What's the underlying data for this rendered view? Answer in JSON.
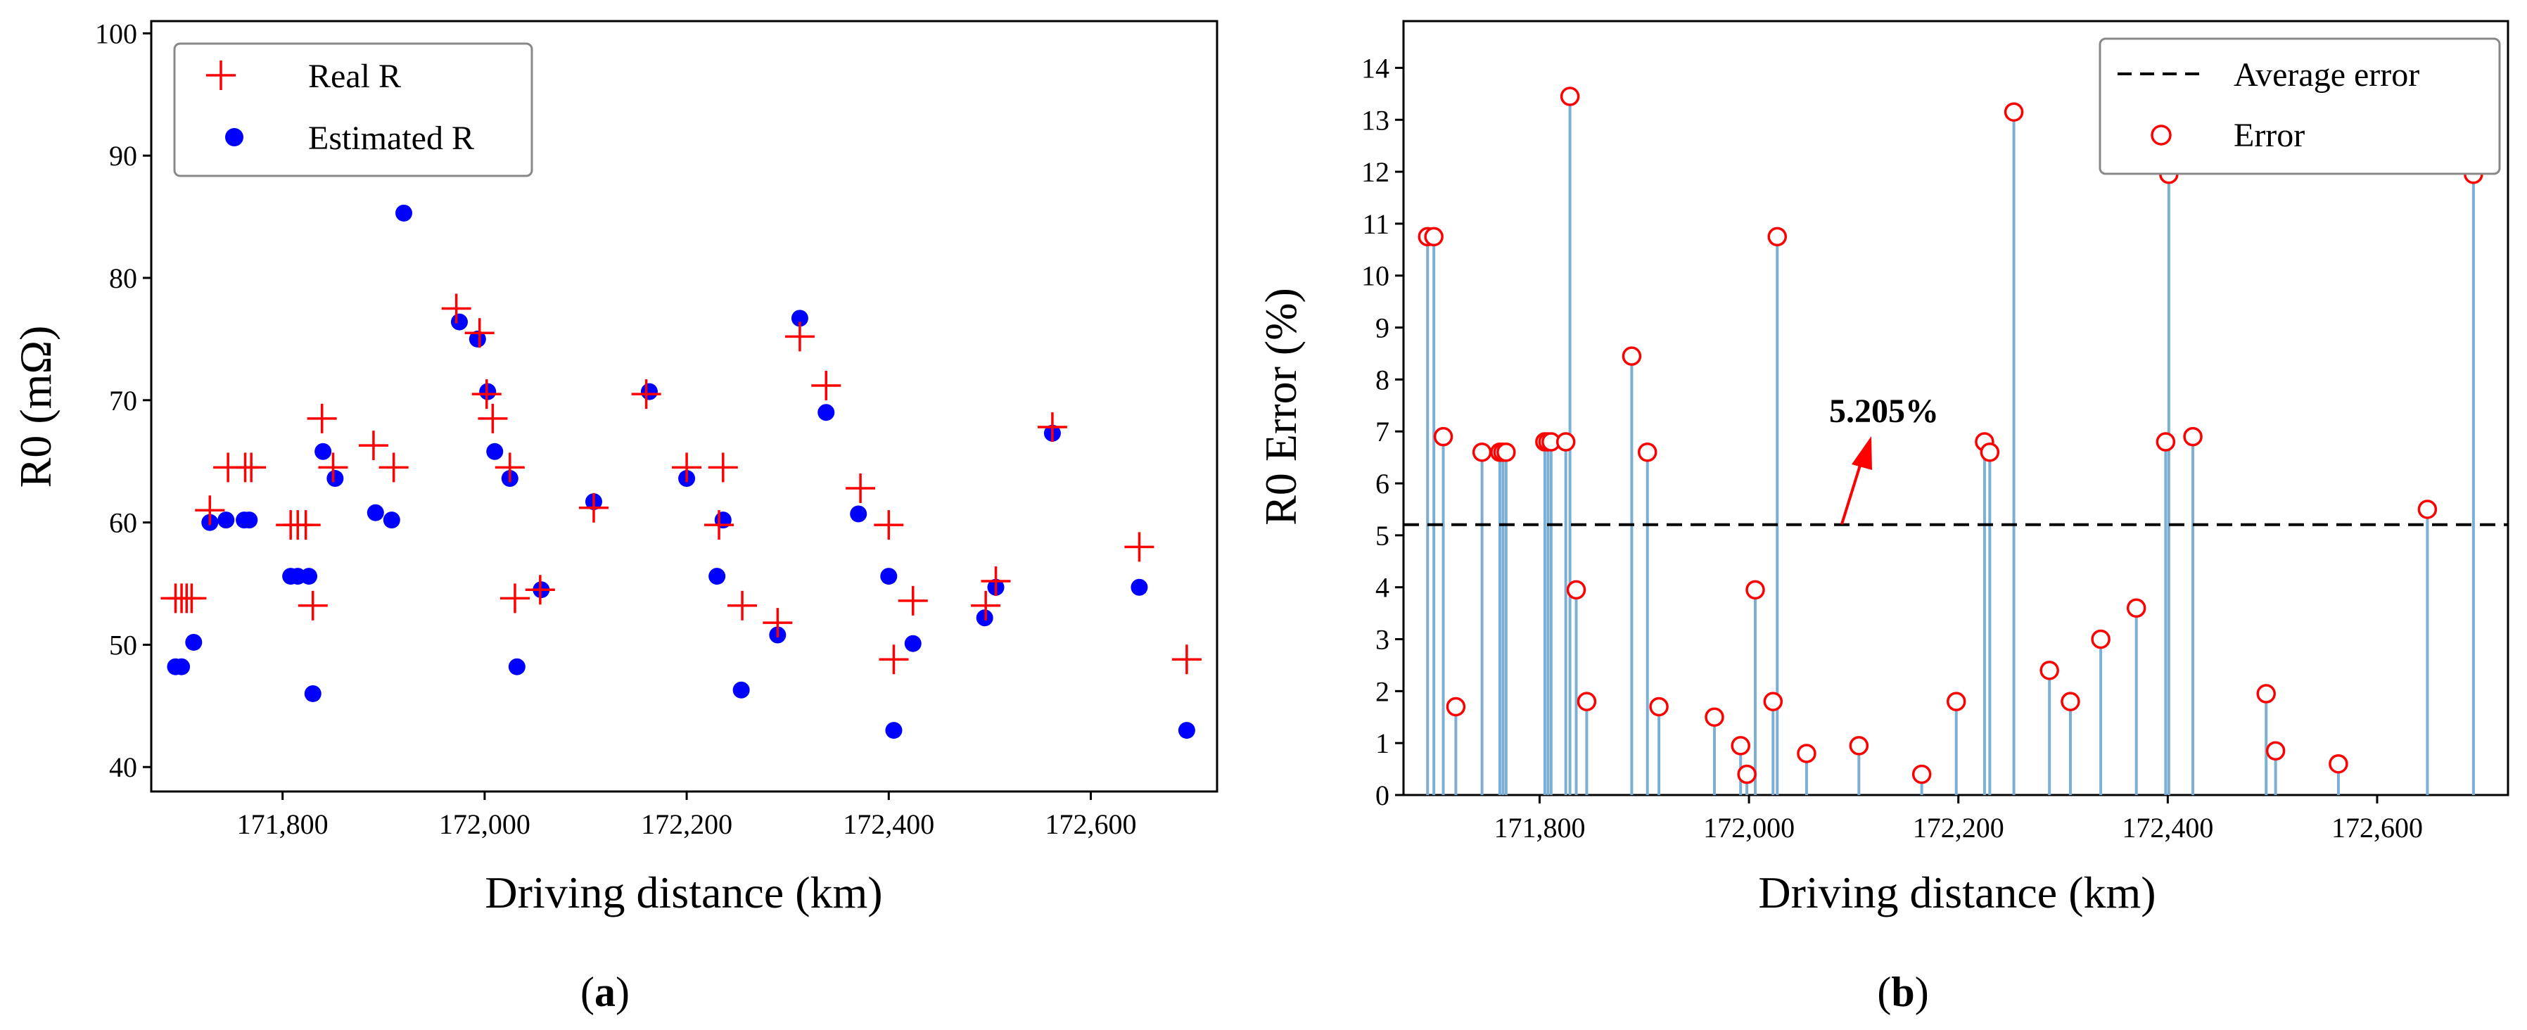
{
  "chart_data": [
    {
      "type": "scatter",
      "panel_label": "(a)",
      "panel_letter": "a",
      "xlabel": "Driving distance (km)",
      "ylabel": "R0 (mΩ)",
      "xlim": [
        171670,
        172725
      ],
      "ylim": [
        38,
        101
      ],
      "xticks": [
        171800,
        172000,
        172200,
        172400,
        172600
      ],
      "xtick_labels": [
        "171,800",
        "172,000",
        "172,200",
        "172,400",
        "172,600"
      ],
      "yticks": [
        40,
        50,
        60,
        70,
        80,
        90,
        100
      ],
      "ytick_labels": [
        "40",
        "50",
        "60",
        "70",
        "80",
        "90",
        "100"
      ],
      "legend": [
        "Real R",
        "Estimated R"
      ],
      "legend_location": "upper-left",
      "series": [
        {
          "name": "Real R",
          "marker": "plus",
          "color": "#ff0000",
          "x": [
            171694,
            171700,
            171705,
            171710,
            171728,
            171746,
            171763,
            171769,
            171808,
            171815,
            171823,
            171830,
            171839,
            171850,
            171890,
            171910,
            171972,
            171995,
            172002,
            172008,
            172025,
            172030,
            172055,
            172108,
            172160,
            172200,
            172232,
            172236,
            172255,
            172290,
            172312,
            172338,
            172372,
            172400,
            172405,
            172424,
            172496,
            172506,
            172562,
            172648,
            172695
          ],
          "y": [
            53.8,
            53.8,
            53.8,
            53.8,
            61,
            64.5,
            64.5,
            64.5,
            59.8,
            59.8,
            59.8,
            53.2,
            68.5,
            64.5,
            66.3,
            64.5,
            77.5,
            75.5,
            70.5,
            68.5,
            64.5,
            53.8,
            54.5,
            61.2,
            70.5,
            64.5,
            59.8,
            64.5,
            53.2,
            51.8,
            75.2,
            71.2,
            62.8,
            59.8,
            48.8,
            53.6,
            53.2,
            55.2,
            67.8,
            58,
            48.8
          ]
        },
        {
          "name": "Estimated R",
          "marker": "circle",
          "color": "#0000ff",
          "x": [
            171694,
            171700,
            171712,
            171728,
            171744,
            171762,
            171767,
            171808,
            171815,
            171826,
            171830,
            171840,
            171852,
            171892,
            171908,
            171920,
            171975,
            171993,
            172003,
            172010,
            172025,
            172032,
            172056,
            172108,
            172163,
            172200,
            172230,
            172236,
            172254,
            172290,
            172312,
            172338,
            172370,
            172400,
            172405,
            172424,
            172495,
            172506,
            172562,
            172648,
            172695
          ],
          "y": [
            48.2,
            48.2,
            50.2,
            60,
            60.2,
            60.2,
            60.2,
            55.6,
            55.6,
            55.6,
            46,
            65.8,
            63.6,
            60.8,
            60.2,
            85.3,
            76.4,
            75,
            70.7,
            65.8,
            63.6,
            48.2,
            54.5,
            61.7,
            70.7,
            63.6,
            55.6,
            60.2,
            46.3,
            50.8,
            76.7,
            69,
            60.7,
            55.6,
            43,
            50.1,
            52.2,
            54.7,
            67.3,
            54.7,
            43
          ]
        }
      ]
    },
    {
      "type": "stem",
      "panel_label": "(b)",
      "panel_letter": "b",
      "xlabel": "Driving distance (km)",
      "ylabel": "R0 Error (%)",
      "xlim": [
        171670,
        172725
      ],
      "ylim": [
        0,
        14.9
      ],
      "xticks": [
        171800,
        172000,
        172200,
        172400,
        172600
      ],
      "xtick_labels": [
        "171,800",
        "172,000",
        "172,200",
        "172,400",
        "172,600"
      ],
      "yticks": [
        0,
        1,
        2,
        3,
        4,
        5,
        6,
        7,
        8,
        9,
        10,
        11,
        12,
        13,
        14
      ],
      "ytick_labels": [
        "0",
        "1",
        "2",
        "3",
        "4",
        "5",
        "6",
        "7",
        "8",
        "9",
        "10",
        "11",
        "12",
        "13",
        "14"
      ],
      "legend": [
        "Average error",
        "Error"
      ],
      "legend_location": "upper-right",
      "average_error": 5.205,
      "average_label": "5.205%",
      "annotation_arrow_color": "#ff0000",
      "stem_color": "#7bafd4",
      "marker_color": "#ff0000",
      "series": [
        {
          "name": "Error",
          "x": [
            171693,
            171699,
            171708,
            171720,
            171745,
            171762,
            171765,
            171768,
            171805,
            171808,
            171811,
            171825,
            171829,
            171835,
            171845,
            171888,
            171903,
            171914,
            171967,
            171992,
            171998,
            172006,
            172023,
            172027,
            172055,
            172105,
            172165,
            172198,
            172225,
            172230,
            172253,
            172287,
            172307,
            172336,
            172370,
            172398,
            172401,
            172424,
            172494,
            172503,
            172563,
            172648,
            172692
          ],
          "y": [
            10.75,
            10.75,
            6.9,
            1.7,
            6.6,
            6.6,
            6.6,
            6.6,
            6.8,
            6.8,
            6.8,
            6.8,
            13.45,
            3.95,
            1.8,
            8.45,
            6.6,
            1.7,
            1.5,
            0.95,
            0.4,
            3.95,
            1.8,
            10.75,
            0.8,
            0.95,
            0.4,
            1.8,
            6.8,
            6.6,
            13.15,
            2.4,
            1.8,
            3.0,
            3.6,
            6.8,
            11.95,
            6.9,
            1.95,
            0.85,
            0.6,
            5.5,
            11.95
          ]
        }
      ]
    }
  ]
}
